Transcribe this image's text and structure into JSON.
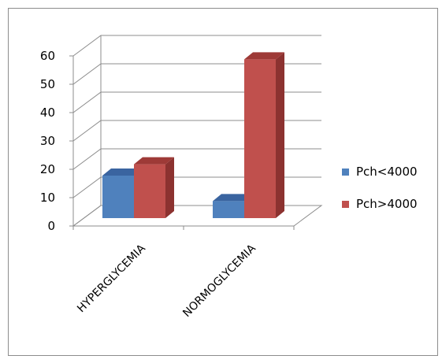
{
  "chart_data": {
    "type": "bar",
    "style": "3d-clustered-column",
    "categories": [
      "HYPERGLYCEMIA",
      "NORMOGLYCEMIA"
    ],
    "series": [
      {
        "name": "Pch<4000",
        "values": [
          15,
          6
        ],
        "color": "#4f81bd",
        "side_color": "#385d8a",
        "top_color": "#3a64a0"
      },
      {
        "name": "Pch>4000",
        "values": [
          19,
          56
        ],
        "color": "#c0504d",
        "side_color": "#8c3230",
        "top_color": "#9e3a37"
      }
    ],
    "ylim": [
      0,
      60
    ],
    "yticks": [
      0,
      10,
      20,
      30,
      40,
      50,
      60
    ],
    "ytick_labels": [
      "0",
      "10",
      "20",
      "30",
      "40",
      "50",
      "60"
    ],
    "grid": true,
    "legend_position": "right",
    "title": "",
    "xlabel": "",
    "ylabel": ""
  }
}
